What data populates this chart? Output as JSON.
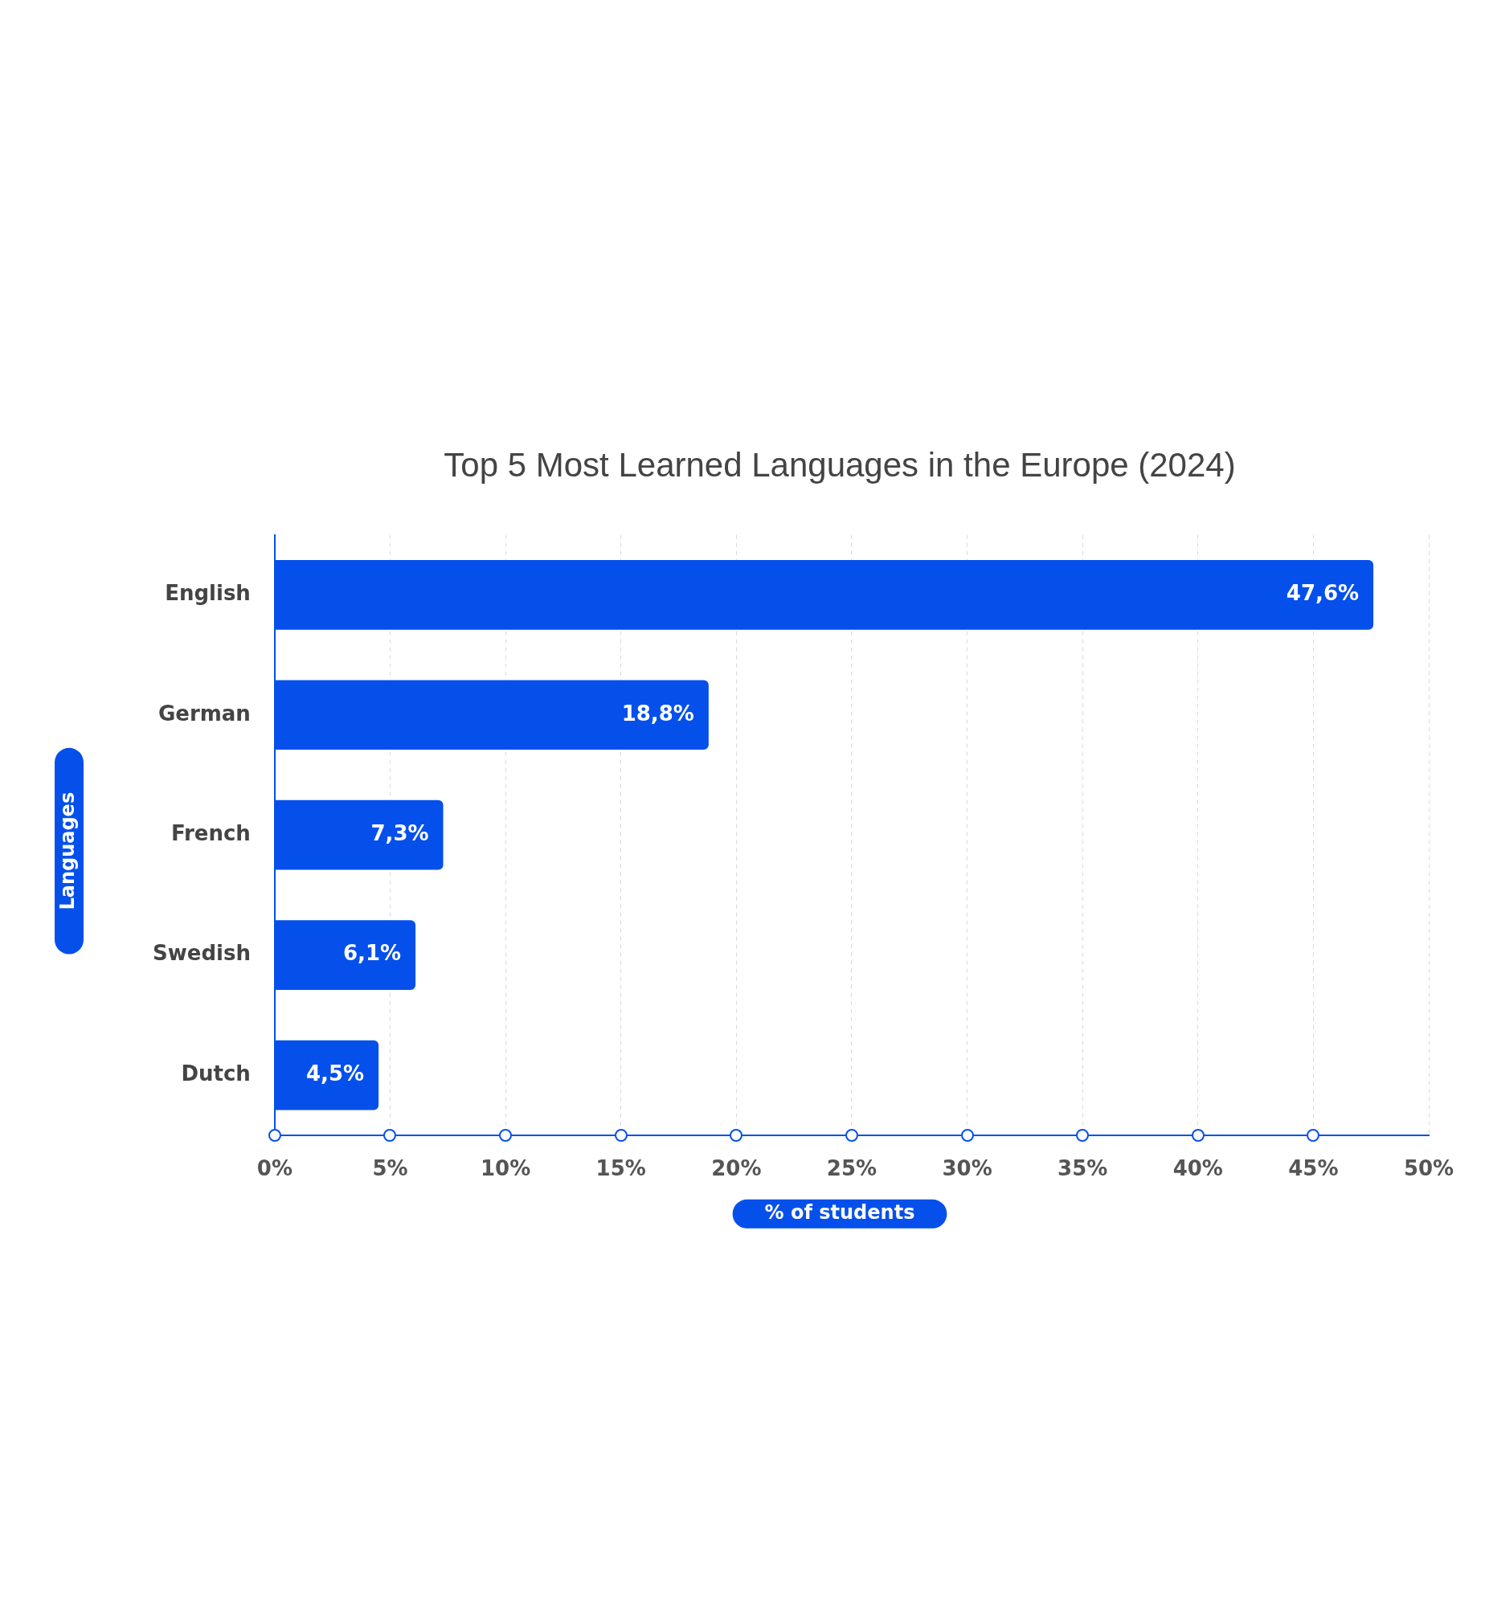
{
  "chart_data": {
    "type": "bar",
    "orientation": "horizontal",
    "title": "Top 5 Most Learned Languages in the Europe (2024)",
    "xlabel": "% of students",
    "ylabel": "Languages",
    "categories": [
      "English",
      "German",
      "French",
      "Swedish",
      "Dutch"
    ],
    "values": [
      47.6,
      18.8,
      7.3,
      6.1,
      4.5
    ],
    "value_labels": [
      "47,6%",
      "18,8%",
      "7,3%",
      "6,1%",
      "4,5%"
    ],
    "color": "#0550eb",
    "xlim": [
      0,
      50
    ],
    "xticks": [
      {
        "value": 0,
        "label": "0%"
      },
      {
        "value": 5,
        "label": "5%"
      },
      {
        "value": 10,
        "label": "10%"
      },
      {
        "value": 15,
        "label": "15%"
      },
      {
        "value": 20,
        "label": "20%"
      },
      {
        "value": 25,
        "label": "25%"
      },
      {
        "value": 30,
        "label": "30%"
      },
      {
        "value": 35,
        "label": "35%"
      },
      {
        "value": 40,
        "label": "40%"
      },
      {
        "value": 45,
        "label": "45%"
      },
      {
        "value": 50,
        "label": "50%"
      }
    ],
    "grid": "x",
    "legend": false
  }
}
